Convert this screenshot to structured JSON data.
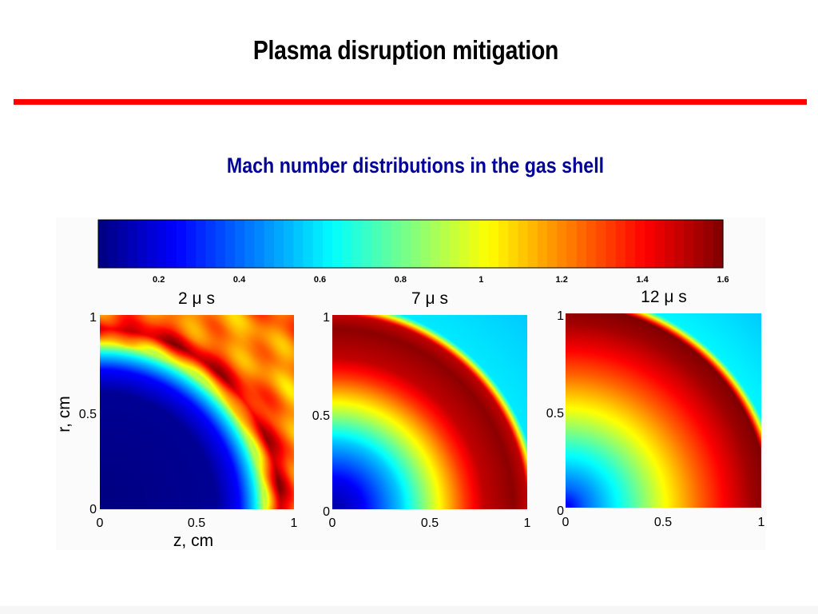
{
  "slide": {
    "title": "Plasma disruption mitigation",
    "subtitle": "Mach number distributions in the gas shell"
  },
  "colors": {
    "rule": "#ff0000",
    "subtitle": "#000099",
    "colormap": "jet"
  },
  "chart_data": [
    {
      "type": "heatmap",
      "title": "2 μ s",
      "xlabel": "z, cm",
      "ylabel": "r, cm",
      "xlim": [
        0,
        1
      ],
      "ylim": [
        0,
        1
      ],
      "xticks": [
        "0",
        "0.5",
        "1"
      ],
      "yticks": [
        "0",
        "0.5",
        "1"
      ],
      "colorbar": {
        "range": [
          0.05,
          1.6
        ],
        "ticks": [
          "0.2",
          "0.4",
          "0.6",
          "0.8",
          "1",
          "1.2",
          "1.4",
          "1.6"
        ]
      },
      "field_profile": {
        "radius": [
          0,
          0.6,
          0.72,
          0.8,
          0.86,
          0.93,
          1.0,
          1.15,
          1.42
        ],
        "mach": [
          0.05,
          0.08,
          0.25,
          0.6,
          1.05,
          1.5,
          1.28,
          1.15,
          1.3
        ]
      }
    },
    {
      "type": "heatmap",
      "title": "7 μ s",
      "xlabel": "",
      "ylabel": "",
      "xlim": [
        0,
        1
      ],
      "ylim": [
        0,
        1
      ],
      "xticks": [
        "0",
        "0.5",
        "1"
      ],
      "yticks": [
        "0",
        "0.5",
        "1"
      ],
      "field_profile": {
        "radius": [
          0,
          0.15,
          0.35,
          0.52,
          0.68,
          0.78,
          0.93,
          1.0,
          1.06,
          1.42
        ],
        "mach": [
          0.1,
          0.22,
          0.55,
          0.95,
          1.32,
          1.5,
          1.58,
          1.5,
          0.6,
          0.55
        ]
      }
    },
    {
      "type": "heatmap",
      "title": "12 μ s",
      "xlabel": "",
      "ylabel": "",
      "xlim": [
        0,
        1
      ],
      "ylim": [
        0,
        1
      ],
      "xticks": [
        "0",
        "0.5",
        "1"
      ],
      "yticks": [
        "0",
        "0.5",
        "1"
      ],
      "field_profile": {
        "radius": [
          0,
          0.1,
          0.3,
          0.5,
          0.68,
          0.82,
          0.95,
          1.04,
          1.1,
          1.42
        ],
        "mach": [
          0.2,
          0.4,
          0.68,
          1.0,
          1.25,
          1.42,
          1.55,
          1.6,
          0.62,
          0.55
        ]
      }
    }
  ]
}
